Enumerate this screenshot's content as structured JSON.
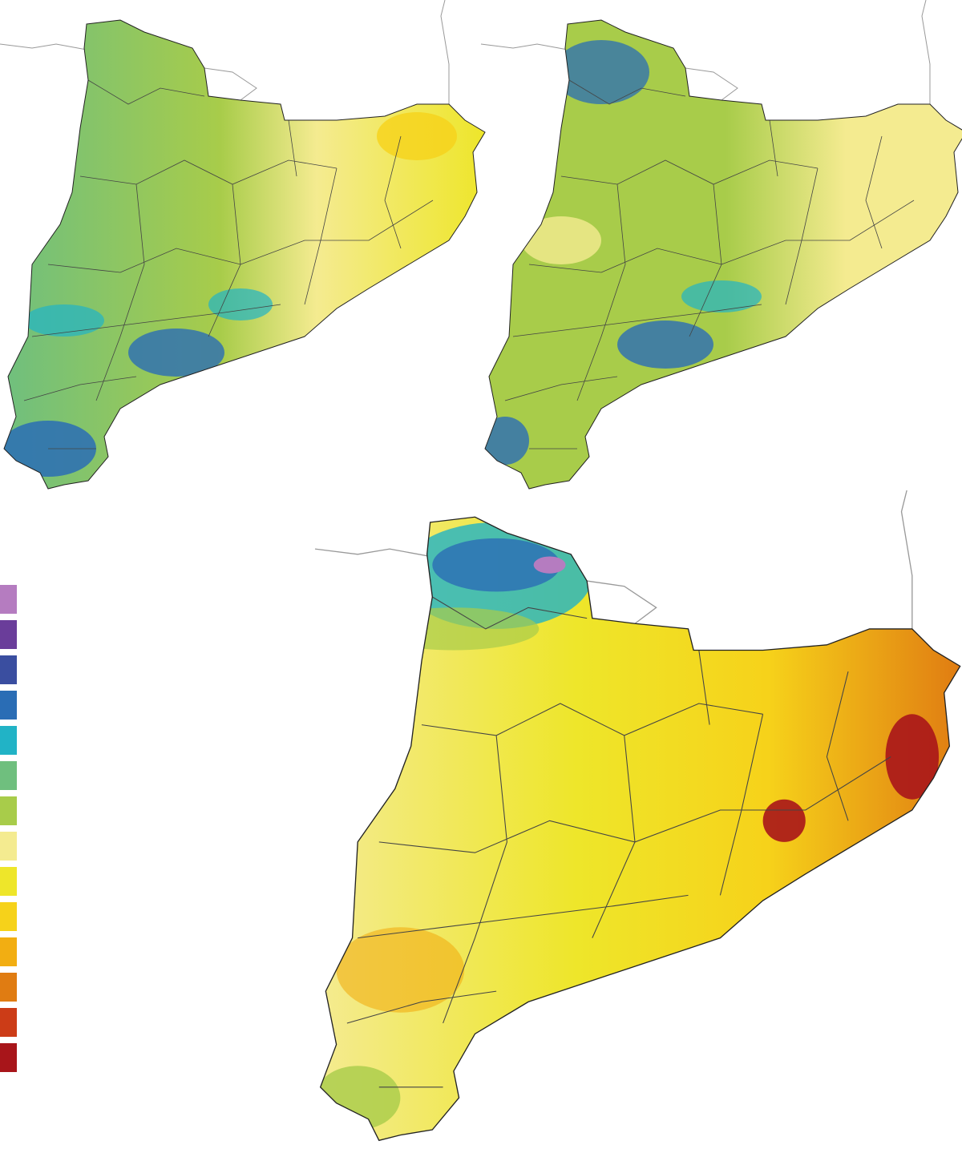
{
  "legend": {
    "colors": [
      "#b57cc0",
      "#6a3d9a",
      "#3a4ea0",
      "#2a6db5",
      "#21b3c6",
      "#6fbf7e",
      "#a8cc4a",
      "#f4eb90",
      "#eee62a",
      "#f6d21a",
      "#f2ae12",
      "#e07c12",
      "#cc3c17",
      "#a8151a"
    ]
  }
}
